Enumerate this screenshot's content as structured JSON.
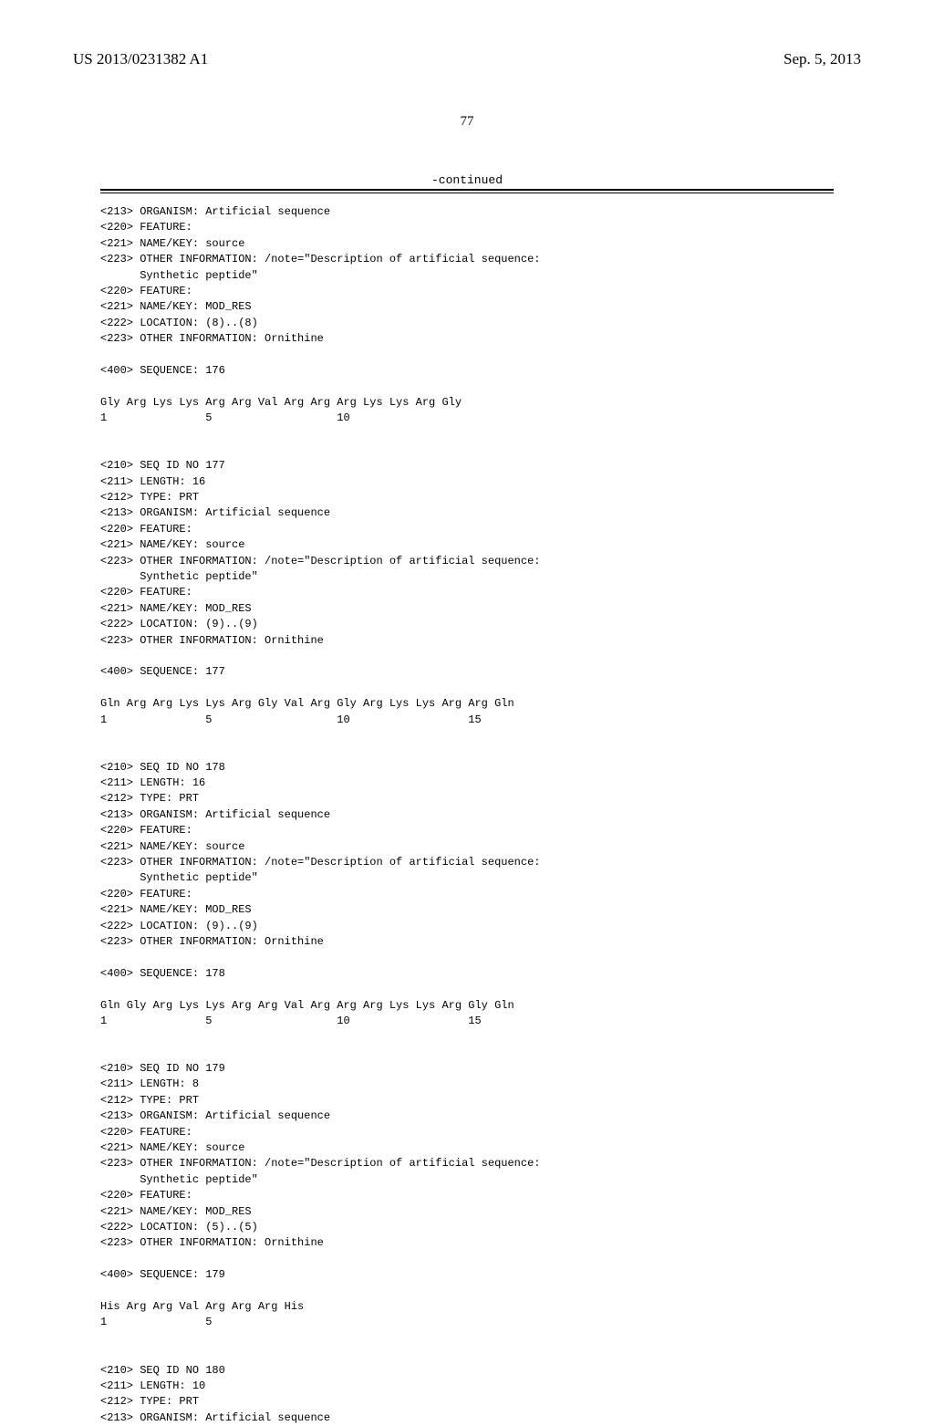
{
  "header": {
    "patent_number": "US 2013/0231382 A1",
    "date": "Sep. 5, 2013"
  },
  "page_number": "77",
  "continued_label": "-continued",
  "blocks": [
    {
      "lines": [
        "<213> ORGANISM: Artificial sequence",
        "<220> FEATURE:",
        "<221> NAME/KEY: source",
        "<223> OTHER INFORMATION: /note=\"Description of artificial sequence:",
        "      Synthetic peptide\"",
        "<220> FEATURE:",
        "<221> NAME/KEY: MOD_RES",
        "<222> LOCATION: (8)..(8)",
        "<223> OTHER INFORMATION: Ornithine",
        "",
        "<400> SEQUENCE: 176",
        "",
        "Gly Arg Lys Lys Arg Arg Val Arg Arg Arg Lys Lys Arg Gly",
        "1               5                   10",
        "",
        "",
        "<210> SEQ ID NO 177",
        "<211> LENGTH: 16",
        "<212> TYPE: PRT",
        "<213> ORGANISM: Artificial sequence",
        "<220> FEATURE:",
        "<221> NAME/KEY: source",
        "<223> OTHER INFORMATION: /note=\"Description of artificial sequence:",
        "      Synthetic peptide\"",
        "<220> FEATURE:",
        "<221> NAME/KEY: MOD_RES",
        "<222> LOCATION: (9)..(9)",
        "<223> OTHER INFORMATION: Ornithine",
        "",
        "<400> SEQUENCE: 177",
        "",
        "Gln Arg Arg Lys Lys Arg Gly Val Arg Gly Arg Lys Lys Arg Arg Gln",
        "1               5                   10                  15",
        "",
        "",
        "<210> SEQ ID NO 178",
        "<211> LENGTH: 16",
        "<212> TYPE: PRT",
        "<213> ORGANISM: Artificial sequence",
        "<220> FEATURE:",
        "<221> NAME/KEY: source",
        "<223> OTHER INFORMATION: /note=\"Description of artificial sequence:",
        "      Synthetic peptide\"",
        "<220> FEATURE:",
        "<221> NAME/KEY: MOD_RES",
        "<222> LOCATION: (9)..(9)",
        "<223> OTHER INFORMATION: Ornithine",
        "",
        "<400> SEQUENCE: 178",
        "",
        "Gln Gly Arg Lys Lys Arg Arg Val Arg Arg Arg Lys Lys Arg Gly Gln",
        "1               5                   10                  15",
        "",
        "",
        "<210> SEQ ID NO 179",
        "<211> LENGTH: 8",
        "<212> TYPE: PRT",
        "<213> ORGANISM: Artificial sequence",
        "<220> FEATURE:",
        "<221> NAME/KEY: source",
        "<223> OTHER INFORMATION: /note=\"Description of artificial sequence:",
        "      Synthetic peptide\"",
        "<220> FEATURE:",
        "<221> NAME/KEY: MOD_RES",
        "<222> LOCATION: (5)..(5)",
        "<223> OTHER INFORMATION: Ornithine",
        "",
        "<400> SEQUENCE: 179",
        "",
        "His Arg Arg Val Arg Arg Arg His",
        "1               5",
        "",
        "",
        "<210> SEQ ID NO 180",
        "<211> LENGTH: 10",
        "<212> TYPE: PRT",
        "<213> ORGANISM: Artificial sequence"
      ]
    }
  ]
}
